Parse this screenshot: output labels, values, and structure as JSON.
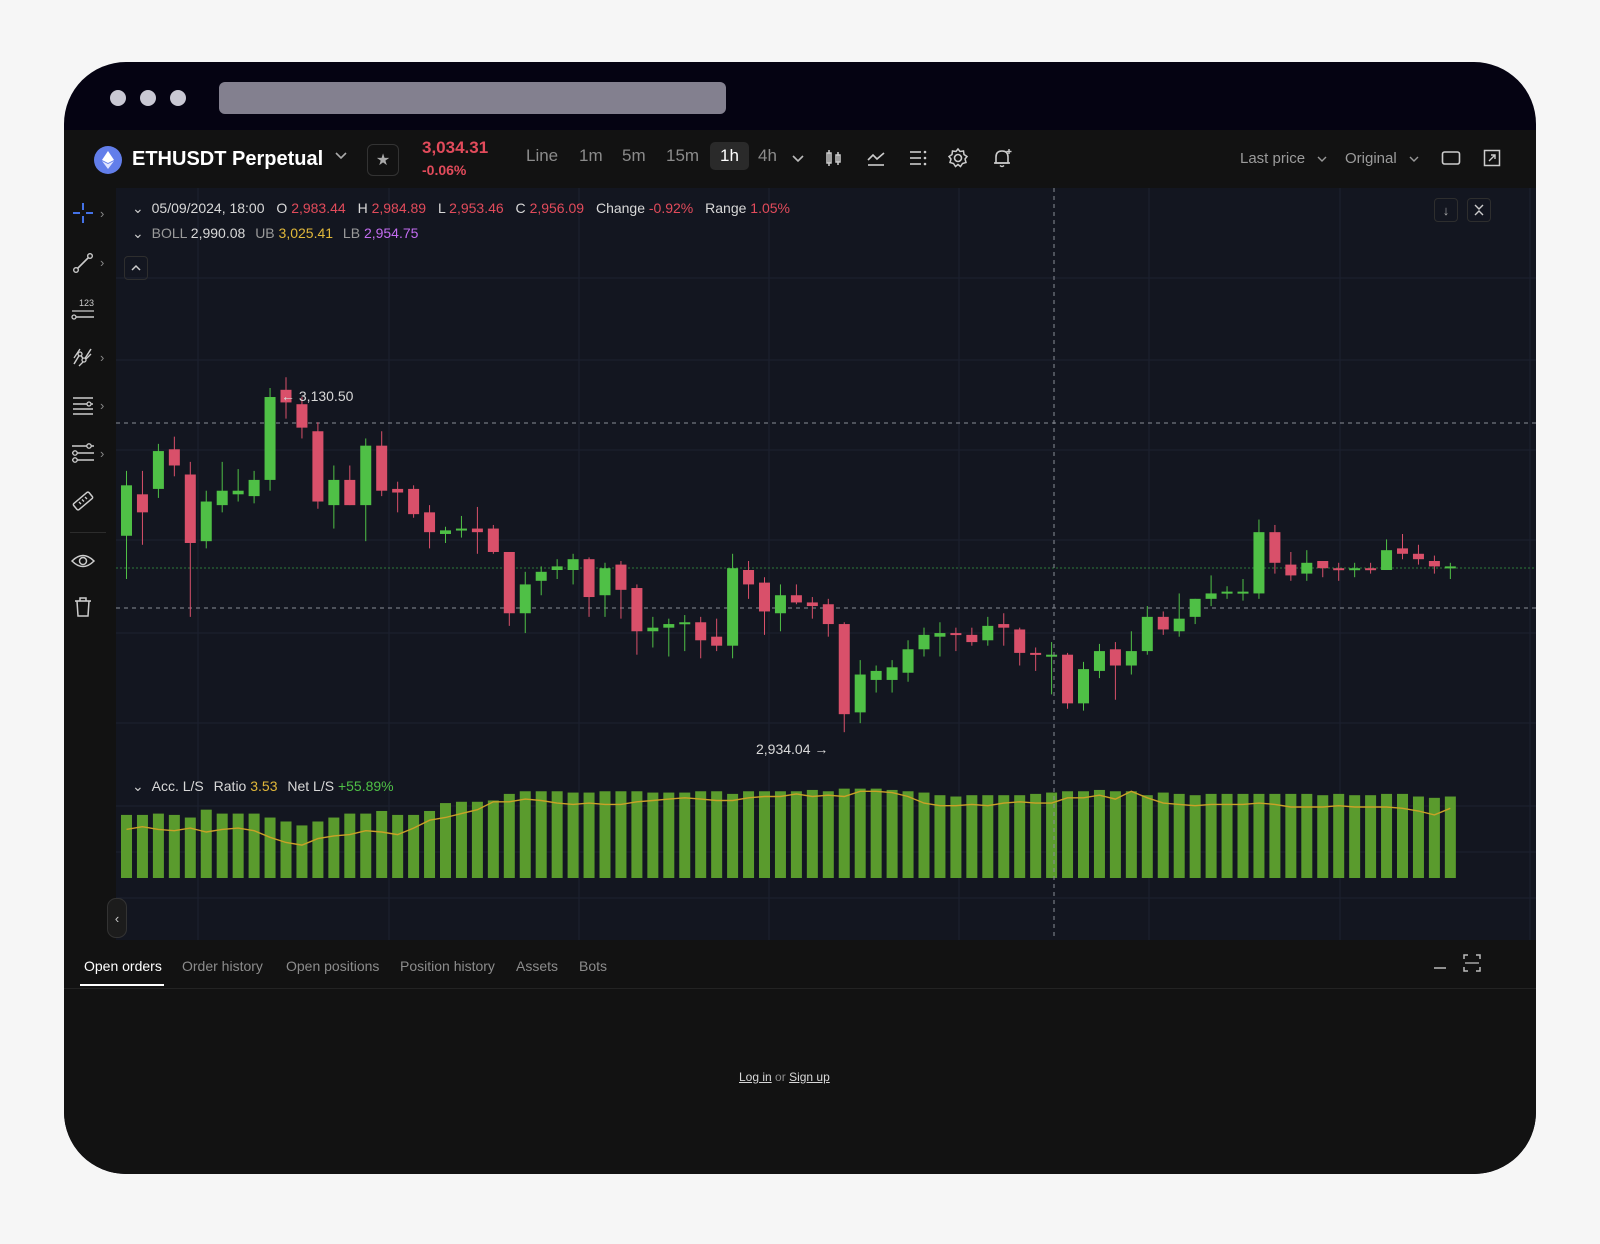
{
  "header": {
    "symbol": "ETHUSDT Perpetual",
    "price": "3,034.31",
    "change": "-0.06%",
    "timeframes": [
      "Line",
      "1m",
      "5m",
      "15m",
      "1h",
      "4h"
    ],
    "active_timeframe": "1h",
    "price_type": "Last price",
    "view_mode": "Original"
  },
  "legend": {
    "datetime": "05/09/2024, 18:00",
    "o_label": "O",
    "o": "2,983.44",
    "h_label": "H",
    "h": "2,984.89",
    "l_label": "L",
    "l": "2,953.46",
    "c_label": "C",
    "c": "2,956.09",
    "change_label": "Change",
    "change": "-0.92%",
    "range_label": "Range",
    "range": "1.05%",
    "boll_label": "BOLL",
    "boll": "2,990.08",
    "ub_label": "UB",
    "ub": "3,025.41",
    "lb_label": "LB",
    "lb": "2,954.75",
    "ls_label": "Acc. L/S",
    "ratio_label": "Ratio",
    "ratio": "3.53",
    "netls_label": "Net L/S",
    "netls": "+55.89%"
  },
  "annotations": {
    "high": "3,130.50",
    "low": "2,934.04"
  },
  "colors": {
    "up": "#4fc046",
    "down": "#d9506a",
    "bar": "#5a9b2d"
  },
  "tabs": [
    "Open orders",
    "Order history",
    "Open positions",
    "Position history",
    "Assets",
    "Bots"
  ],
  "active_tab": "Open orders",
  "empty_state": {
    "login": "Log in",
    "or": "or",
    "signup": "Sign up"
  },
  "icons": {
    "symbol": "ethereum-icon",
    "favorite": "star-icon",
    "tools": [
      "candle-type-icon",
      "indicators-icon",
      "layout-icon",
      "settings-icon",
      "alert-bell-icon"
    ],
    "window": [
      "single-layout-icon",
      "fullscreen-icon"
    ],
    "left": [
      "crosshair-icon",
      "trend-line-icon",
      "fib-icon",
      "pattern-icon",
      "horizontal-lines-icon",
      "multi-line-icon",
      "ruler-icon",
      "eye-icon",
      "trash-icon"
    ]
  },
  "chart_data": {
    "type": "candlestick",
    "interval": "1h",
    "candles": [
      {
        "o": 3049,
        "h": 3085,
        "l": 3025,
        "c": 3077
      },
      {
        "o": 3072,
        "h": 3085,
        "l": 3044,
        "c": 3062
      },
      {
        "o": 3075,
        "h": 3100,
        "l": 3070,
        "c": 3096
      },
      {
        "o": 3097,
        "h": 3104,
        "l": 3082,
        "c": 3088
      },
      {
        "o": 3083,
        "h": 3090,
        "l": 3004,
        "c": 3045
      },
      {
        "o": 3046,
        "h": 3074,
        "l": 3042,
        "c": 3068
      },
      {
        "o": 3066,
        "h": 3090,
        "l": 3062,
        "c": 3074
      },
      {
        "o": 3072,
        "h": 3086,
        "l": 3068,
        "c": 3074
      },
      {
        "o": 3071,
        "h": 3085,
        "l": 3067,
        "c": 3080
      },
      {
        "o": 3080,
        "h": 3131,
        "l": 3074,
        "c": 3126
      },
      {
        "o": 3130,
        "h": 3137,
        "l": 3114,
        "c": 3123
      },
      {
        "o": 3122,
        "h": 3126,
        "l": 3103,
        "c": 3109
      },
      {
        "o": 3107,
        "h": 3112,
        "l": 3064,
        "c": 3068
      },
      {
        "o": 3066,
        "h": 3088,
        "l": 3053,
        "c": 3080
      },
      {
        "o": 3080,
        "h": 3088,
        "l": 3066,
        "c": 3066
      },
      {
        "o": 3066,
        "h": 3103,
        "l": 3046,
        "c": 3099
      },
      {
        "o": 3099,
        "h": 3107,
        "l": 3071,
        "c": 3074
      },
      {
        "o": 3075,
        "h": 3079,
        "l": 3062,
        "c": 3073
      },
      {
        "o": 3075,
        "h": 3077,
        "l": 3059,
        "c": 3061
      },
      {
        "o": 3062,
        "h": 3066,
        "l": 3042,
        "c": 3051
      },
      {
        "o": 3050,
        "h": 3054,
        "l": 3045,
        "c": 3052
      },
      {
        "o": 3052,
        "h": 3060,
        "l": 3048,
        "c": 3053
      },
      {
        "o": 3053,
        "h": 3065,
        "l": 3039,
        "c": 3051
      },
      {
        "o": 3053,
        "h": 3055,
        "l": 3039,
        "c": 3040
      },
      {
        "o": 3040,
        "h": 3040,
        "l": 2999,
        "c": 3006
      },
      {
        "o": 3006,
        "h": 3029,
        "l": 2995,
        "c": 3022
      },
      {
        "o": 3024,
        "h": 3032,
        "l": 3016,
        "c": 3029
      },
      {
        "o": 3030,
        "h": 3036,
        "l": 3025,
        "c": 3032
      },
      {
        "o": 3030,
        "h": 3039,
        "l": 3022,
        "c": 3036
      },
      {
        "o": 3036,
        "h": 3037,
        "l": 3004,
        "c": 3015
      },
      {
        "o": 3016,
        "h": 3034,
        "l": 3004,
        "c": 3031
      },
      {
        "o": 3033,
        "h": 3035,
        "l": 3003,
        "c": 3019
      },
      {
        "o": 3020,
        "h": 3022,
        "l": 2983,
        "c": 2996
      },
      {
        "o": 2996,
        "h": 3004,
        "l": 2987,
        "c": 2998
      },
      {
        "o": 2998,
        "h": 3003,
        "l": 2982,
        "c": 3000
      },
      {
        "o": 3000,
        "h": 3005,
        "l": 2985,
        "c": 3001
      },
      {
        "o": 3001,
        "h": 3004,
        "l": 2981,
        "c": 2991
      },
      {
        "o": 2993,
        "h": 3003,
        "l": 2985,
        "c": 2988
      },
      {
        "o": 2988,
        "h": 3039,
        "l": 2981,
        "c": 3031
      },
      {
        "o": 3030,
        "h": 3035,
        "l": 3014,
        "c": 3022
      },
      {
        "o": 3023,
        "h": 3026,
        "l": 2994,
        "c": 3007
      },
      {
        "o": 3006,
        "h": 3022,
        "l": 2996,
        "c": 3016
      },
      {
        "o": 3016,
        "h": 3022,
        "l": 3011,
        "c": 3012
      },
      {
        "o": 3012,
        "h": 3015,
        "l": 3003,
        "c": 3010
      },
      {
        "o": 3011,
        "h": 3014,
        "l": 2993,
        "c": 3000
      },
      {
        "o": 3000,
        "h": 3001,
        "l": 2940,
        "c": 2950
      },
      {
        "o": 2951,
        "h": 2980,
        "l": 2945,
        "c": 2972
      },
      {
        "o": 2969,
        "h": 2977,
        "l": 2962,
        "c": 2974
      },
      {
        "o": 2969,
        "h": 2980,
        "l": 2962,
        "c": 2976
      },
      {
        "o": 2973,
        "h": 2991,
        "l": 2968,
        "c": 2986
      },
      {
        "o": 2986,
        "h": 2998,
        "l": 2982,
        "c": 2994
      },
      {
        "o": 2993,
        "h": 3001,
        "l": 2982,
        "c": 2995
      },
      {
        "o": 2995,
        "h": 2998,
        "l": 2985,
        "c": 2994
      },
      {
        "o": 2994,
        "h": 2998,
        "l": 2988,
        "c": 2990
      },
      {
        "o": 2991,
        "h": 3004,
        "l": 2988,
        "c": 2999
      },
      {
        "o": 3000,
        "h": 3006,
        "l": 2988,
        "c": 2998
      },
      {
        "o": 2997,
        "h": 2998,
        "l": 2977,
        "c": 2984
      },
      {
        "o": 2984,
        "h": 2987,
        "l": 2974,
        "c": 2983
      },
      {
        "o": 2983,
        "h": 2990,
        "l": 2961,
        "c": 2983
      },
      {
        "o": 2983,
        "h": 2984,
        "l": 2953,
        "c": 2956
      },
      {
        "o": 2956,
        "h": 2979,
        "l": 2952,
        "c": 2975
      },
      {
        "o": 2974,
        "h": 2989,
        "l": 2970,
        "c": 2985
      },
      {
        "o": 2986,
        "h": 2990,
        "l": 2958,
        "c": 2977
      },
      {
        "o": 2977,
        "h": 2996,
        "l": 2972,
        "c": 2985
      },
      {
        "o": 2985,
        "h": 3010,
        "l": 2983,
        "c": 3004
      },
      {
        "o": 3004,
        "h": 3007,
        "l": 2994,
        "c": 2997
      },
      {
        "o": 2996,
        "h": 3017,
        "l": 2993,
        "c": 3003
      },
      {
        "o": 3004,
        "h": 3014,
        "l": 3000,
        "c": 3014
      },
      {
        "o": 3014,
        "h": 3027,
        "l": 3010,
        "c": 3017
      },
      {
        "o": 3017,
        "h": 3021,
        "l": 3014,
        "c": 3018
      },
      {
        "o": 3018,
        "h": 3025,
        "l": 3013,
        "c": 3018
      },
      {
        "o": 3017,
        "h": 3058,
        "l": 3014,
        "c": 3051
      },
      {
        "o": 3051,
        "h": 3055,
        "l": 3028,
        "c": 3034
      },
      {
        "o": 3033,
        "h": 3040,
        "l": 3024,
        "c": 3027
      },
      {
        "o": 3028,
        "h": 3041,
        "l": 3024,
        "c": 3034
      },
      {
        "o": 3035,
        "h": 3035,
        "l": 3026,
        "c": 3031
      },
      {
        "o": 3031,
        "h": 3034,
        "l": 3024,
        "c": 3030
      },
      {
        "o": 3030,
        "h": 3034,
        "l": 3026,
        "c": 3031
      },
      {
        "o": 3031,
        "h": 3034,
        "l": 3028,
        "c": 3030
      },
      {
        "o": 3030,
        "h": 3047,
        "l": 3030,
        "c": 3041
      },
      {
        "o": 3042,
        "h": 3050,
        "l": 3036,
        "c": 3039
      },
      {
        "o": 3039,
        "h": 3044,
        "l": 3033,
        "c": 3036
      },
      {
        "o": 3035,
        "h": 3038,
        "l": 3028,
        "c": 3032
      },
      {
        "o": 3032,
        "h": 3034,
        "l": 3025,
        "c": 3032
      }
    ],
    "ls_ratio_bars": [
      3.48,
      3.48,
      3.49,
      3.48,
      3.46,
      3.52,
      3.49,
      3.49,
      3.49,
      3.46,
      3.43,
      3.4,
      3.43,
      3.46,
      3.49,
      3.49,
      3.51,
      3.48,
      3.48,
      3.51,
      3.57,
      3.58,
      3.58,
      3.59,
      3.64,
      3.66,
      3.66,
      3.66,
      3.65,
      3.65,
      3.66,
      3.66,
      3.66,
      3.65,
      3.65,
      3.65,
      3.66,
      3.66,
      3.64,
      3.66,
      3.66,
      3.66,
      3.66,
      3.67,
      3.66,
      3.68,
      3.68,
      3.68,
      3.67,
      3.66,
      3.65,
      3.63,
      3.62,
      3.63,
      3.63,
      3.63,
      3.63,
      3.64,
      3.65,
      3.66,
      3.66,
      3.67,
      3.66,
      3.66,
      3.63,
      3.65,
      3.64,
      3.63,
      3.64,
      3.64,
      3.64,
      3.64,
      3.64,
      3.64,
      3.64,
      3.63,
      3.64,
      3.63,
      3.63,
      3.64,
      3.64,
      3.62,
      3.61,
      3.62
    ],
    "ls_ratio_line": [
      3.37,
      3.39,
      3.37,
      3.36,
      3.38,
      3.35,
      3.37,
      3.38,
      3.36,
      3.31,
      3.27,
      3.25,
      3.3,
      3.32,
      3.33,
      3.36,
      3.35,
      3.33,
      3.38,
      3.44,
      3.46,
      3.49,
      3.52,
      3.58,
      3.58,
      3.6,
      3.59,
      3.57,
      3.56,
      3.57,
      3.56,
      3.56,
      3.58,
      3.59,
      3.6,
      3.61,
      3.6,
      3.59,
      3.59,
      3.61,
      3.62,
      3.62,
      3.64,
      3.62,
      3.63,
      3.62,
      3.66,
      3.66,
      3.65,
      3.62,
      3.57,
      3.55,
      3.55,
      3.56,
      3.55,
      3.57,
      3.58,
      3.57,
      3.57,
      3.61,
      3.61,
      3.63,
      3.6,
      3.66,
      3.61,
      3.57,
      3.56,
      3.55,
      3.56,
      3.56,
      3.56,
      3.57,
      3.56,
      3.54,
      3.54,
      3.54,
      3.55,
      3.54,
      3.54,
      3.54,
      3.53,
      3.51,
      3.48,
      3.53
    ]
  }
}
